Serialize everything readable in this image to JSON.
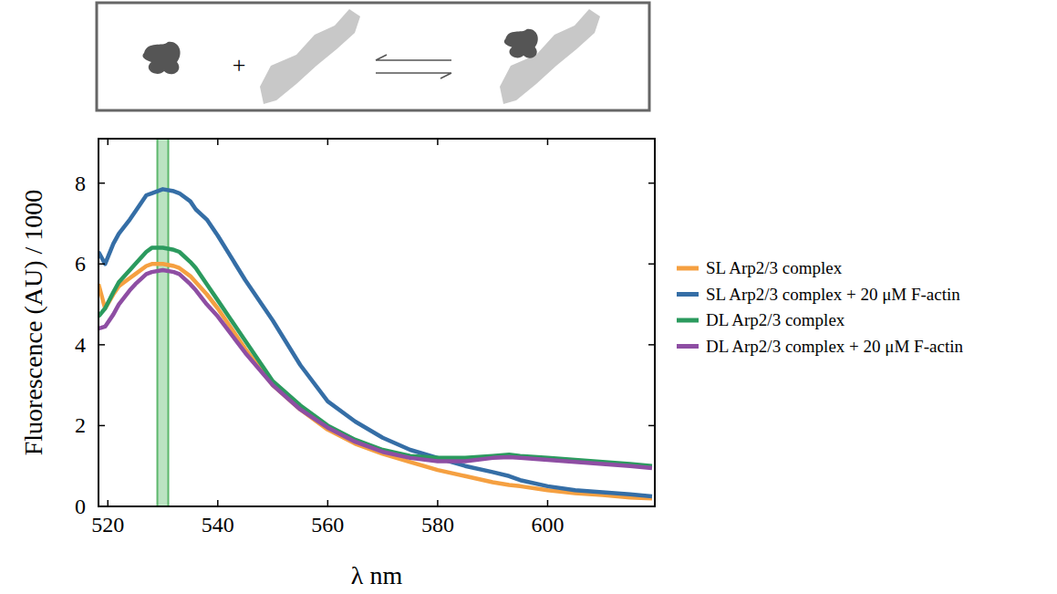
{
  "chart_data": {
    "type": "line",
    "x_label": "λ nm",
    "y_label": "Fluorescence (AU) / 1000",
    "annotations": [
      "+"
    ],
    "band": [
      529,
      531
    ],
    "xlim": [
      518.3,
      619.5
    ],
    "ylim": [
      0,
      9.1
    ],
    "xticks": [
      520,
      540,
      560,
      580,
      600
    ],
    "yticks": [
      0,
      2,
      4,
      6,
      8
    ],
    "grid": false,
    "legend": "outside-right",
    "x": [
      518.3,
      519.5,
      521,
      522,
      524,
      525,
      527,
      528,
      530,
      532,
      533,
      535,
      536,
      538,
      540,
      545,
      550,
      555,
      560,
      565,
      570,
      575,
      580,
      585,
      590,
      593,
      595,
      600,
      605,
      610,
      615,
      619
    ],
    "series": [
      {
        "name": "SL Arp2/3 complex",
        "color": "#f5a041",
        "values": [
          5.5,
          4.9,
          5.25,
          5.45,
          5.65,
          5.75,
          5.95,
          6.0,
          6.0,
          5.95,
          5.9,
          5.7,
          5.55,
          5.25,
          4.9,
          3.9,
          3.0,
          2.4,
          1.9,
          1.55,
          1.3,
          1.1,
          0.9,
          0.75,
          0.6,
          0.53,
          0.5,
          0.4,
          0.33,
          0.28,
          0.22,
          0.2
        ]
      },
      {
        "name": "SL Arp2/3 complex + 20 μM F-actin",
        "color": "#356ea6",
        "values": [
          6.3,
          6.0,
          6.5,
          6.75,
          7.1,
          7.3,
          7.7,
          7.75,
          7.85,
          7.8,
          7.75,
          7.55,
          7.35,
          7.1,
          6.7,
          5.6,
          4.6,
          3.5,
          2.6,
          2.1,
          1.7,
          1.4,
          1.2,
          1.0,
          0.85,
          0.75,
          0.65,
          0.5,
          0.4,
          0.35,
          0.3,
          0.25
        ]
      },
      {
        "name": "DL Arp2/3 complex",
        "color": "#2b9a5e",
        "values": [
          4.7,
          4.9,
          5.3,
          5.55,
          5.85,
          6.0,
          6.3,
          6.4,
          6.4,
          6.35,
          6.3,
          6.05,
          5.9,
          5.5,
          5.1,
          4.1,
          3.1,
          2.5,
          2.0,
          1.65,
          1.4,
          1.25,
          1.2,
          1.2,
          1.25,
          1.28,
          1.25,
          1.2,
          1.15,
          1.1,
          1.05,
          1.0
        ]
      },
      {
        "name": "DL Arp2/3 complex + 20 μM F-actin",
        "color": "#8e4ea3",
        "values": [
          4.4,
          4.45,
          4.75,
          5.0,
          5.35,
          5.5,
          5.75,
          5.8,
          5.85,
          5.8,
          5.75,
          5.5,
          5.35,
          5.0,
          4.7,
          3.8,
          3.0,
          2.4,
          1.95,
          1.6,
          1.35,
          1.2,
          1.12,
          1.12,
          1.2,
          1.22,
          1.2,
          1.15,
          1.1,
          1.05,
          1.0,
          0.95
        ]
      }
    ]
  }
}
